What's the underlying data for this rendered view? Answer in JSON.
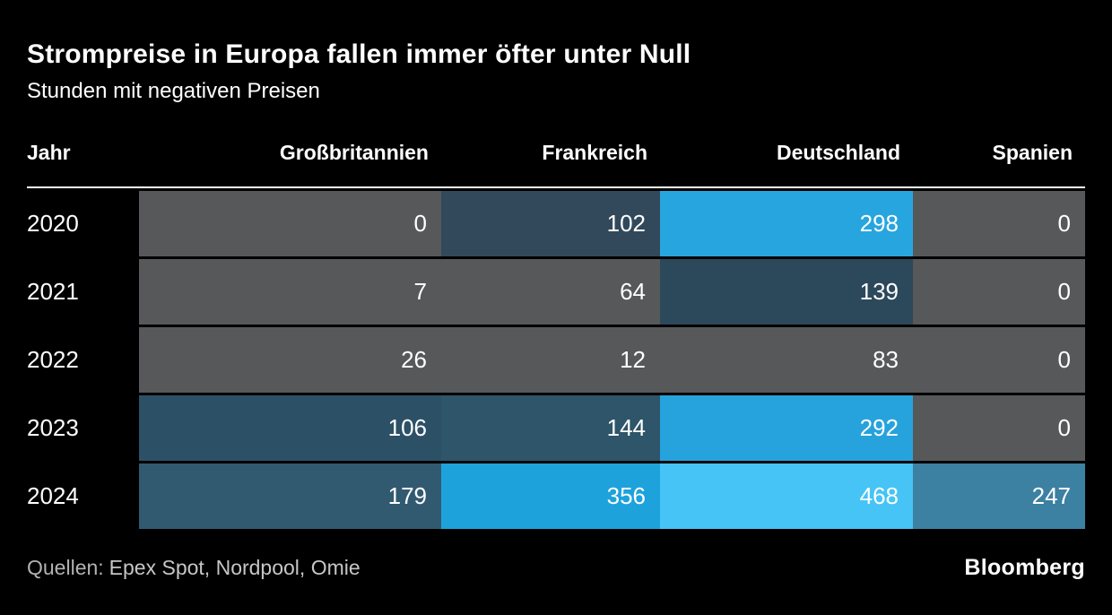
{
  "header": {
    "title": "Strompreise in Europa fallen immer öfter unter Null",
    "subtitle": "Stunden mit negativen Preisen"
  },
  "table": {
    "columns": [
      "Jahr",
      "Großbritannien",
      "Frankreich",
      "Deutschland",
      "Spanien"
    ],
    "rows": [
      {
        "year": "2020",
        "values": [
          "0",
          "102",
          "298",
          "0"
        ],
        "colors": [
          "#57585a",
          "#32495b",
          "#27a5de",
          "#57585a"
        ]
      },
      {
        "year": "2021",
        "values": [
          "7",
          "64",
          "139",
          "0"
        ],
        "colors": [
          "#57585a",
          "#57585a",
          "#2c485b",
          "#57585a"
        ]
      },
      {
        "year": "2022",
        "values": [
          "26",
          "12",
          "83",
          "0"
        ],
        "colors": [
          "#57585a",
          "#57585a",
          "#57585a",
          "#57585a"
        ]
      },
      {
        "year": "2023",
        "values": [
          "106",
          "144",
          "292",
          "0"
        ],
        "colors": [
          "#2c5166",
          "#2e5569",
          "#26a3dc",
          "#57585a"
        ]
      },
      {
        "year": "2024",
        "values": [
          "179",
          "356",
          "468",
          "247"
        ],
        "colors": [
          "#315a70",
          "#1ea2dc",
          "#45c4f5",
          "#3c80a2"
        ]
      }
    ]
  },
  "footer": {
    "source_label": "Quellen:",
    "source_text": "Epex Spot, Nordpool, Omie",
    "brand": "Bloomberg"
  },
  "colors": {
    "background": "#000000",
    "text": "#ffffff",
    "neutral_cell": "#57585a",
    "highlight_blue": "#27a5de",
    "brightest_blue": "#45c4f5",
    "source_text": "#c6c6c6"
  },
  "chart_data": {
    "type": "heatmap",
    "title": "Strompreise in Europa fallen immer öfter unter Null",
    "subtitle": "Stunden mit negativen Preisen",
    "categories": [
      "Großbritannien",
      "Frankreich",
      "Deutschland",
      "Spanien"
    ],
    "rows": [
      "2020",
      "2021",
      "2022",
      "2023",
      "2024"
    ],
    "values": [
      [
        0,
        102,
        298,
        0
      ],
      [
        7,
        64,
        139,
        0
      ],
      [
        26,
        12,
        83,
        0
      ],
      [
        106,
        144,
        292,
        0
      ],
      [
        179,
        356,
        468,
        247
      ]
    ],
    "value_meaning": "Stunden mit negativen Strompreisen pro Jahr",
    "color_scale": "dark gray (low) to bright cyan-blue (high)",
    "source": "Quellen: Epex Spot, Nordpool, Omie",
    "legend_position": "none",
    "grid": false
  }
}
